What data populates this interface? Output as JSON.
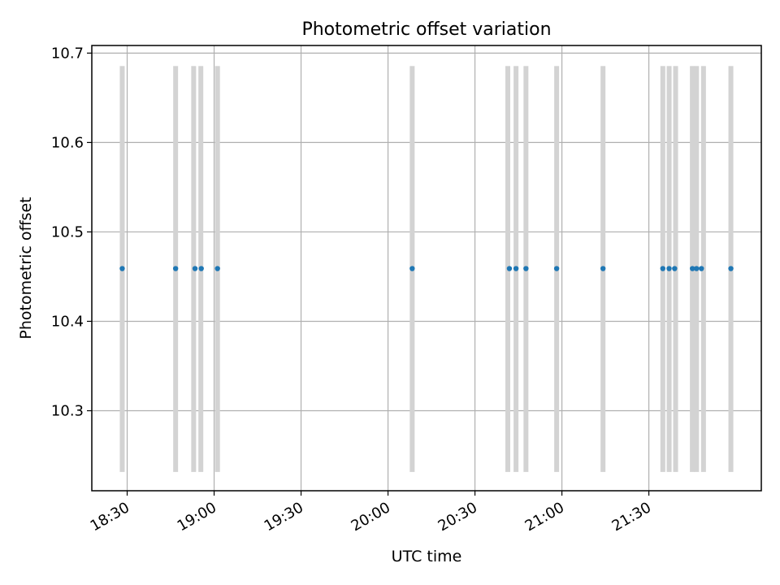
{
  "chart_data": {
    "type": "scatter",
    "title": "Photometric offset variation",
    "xlabel": "UTC time",
    "ylabel": "Photometric offset",
    "xlim": [
      "18:17:48",
      "22:08:48"
    ],
    "ylim": [
      10.2105,
      10.7085
    ],
    "x_ticks": [
      "18:30",
      "19:00",
      "19:30",
      "20:00",
      "20:30",
      "21:00",
      "21:30"
    ],
    "y_ticks": [
      "10.3",
      "10.4",
      "10.5",
      "10.6",
      "10.7"
    ],
    "grid": true,
    "series": [
      {
        "marker_color": "#1f77b4",
        "points": [
          {
            "x": "18:28:18",
            "y": 10.459
          },
          {
            "x": "18:46:43",
            "y": 10.459
          },
          {
            "x": "18:53:25",
            "y": 10.459
          },
          {
            "x": "18:55:34",
            "y": 10.459
          },
          {
            "x": "19:01:10",
            "y": 10.459
          },
          {
            "x": "20:08:21",
            "y": 10.459
          },
          {
            "x": "20:41:53",
            "y": 10.459
          },
          {
            "x": "20:44:10",
            "y": 10.459
          },
          {
            "x": "20:47:36",
            "y": 10.459
          },
          {
            "x": "20:58:11",
            "y": 10.459
          },
          {
            "x": "21:14:11",
            "y": 10.459
          },
          {
            "x": "21:34:49",
            "y": 10.459
          },
          {
            "x": "21:36:59",
            "y": 10.459
          },
          {
            "x": "21:38:54",
            "y": 10.459
          },
          {
            "x": "21:45:02",
            "y": 10.459
          },
          {
            "x": "21:46:27",
            "y": 10.459
          },
          {
            "x": "21:48:08",
            "y": 10.459
          },
          {
            "x": "21:58:18",
            "y": 10.459
          }
        ]
      }
    ],
    "vertical_bands": {
      "color": "#d3d3d3",
      "y_range": [
        10.2315,
        10.6855
      ],
      "x": [
        "18:28:18",
        "18:46:43",
        "18:52:56",
        "18:55:25",
        "19:01:10",
        "20:08:21",
        "20:41:20",
        "20:44:10",
        "20:47:36",
        "20:58:11",
        "21:14:11",
        "21:34:49",
        "21:37:00",
        "21:39:14",
        "21:45:00",
        "21:46:27",
        "21:48:51",
        "21:58:18"
      ]
    }
  }
}
